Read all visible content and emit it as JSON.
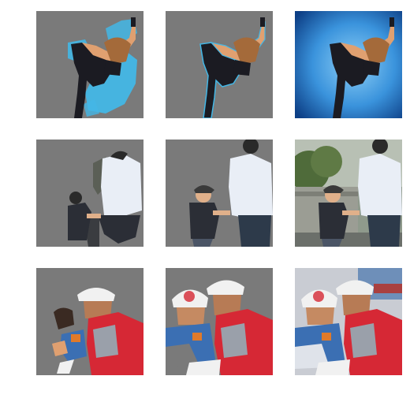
{
  "figure": {
    "description_rows": [
      "dancer",
      "father-and-child",
      "workers"
    ],
    "columns": [
      "coarse-mask",
      "refined-mask",
      "original"
    ],
    "colors": {
      "mask_bg": "#7a7a7a",
      "sky_blue": "#2f86d6",
      "sky_light": "#6fb8ee",
      "skin": "#e0a070",
      "dark_cloth": "#1b1b22",
      "shirt_white": "#e9eef6",
      "vest_red": "#d62835",
      "jacket_blue": "#3b6fb3",
      "helmet_white": "#f1f1f1"
    }
  }
}
